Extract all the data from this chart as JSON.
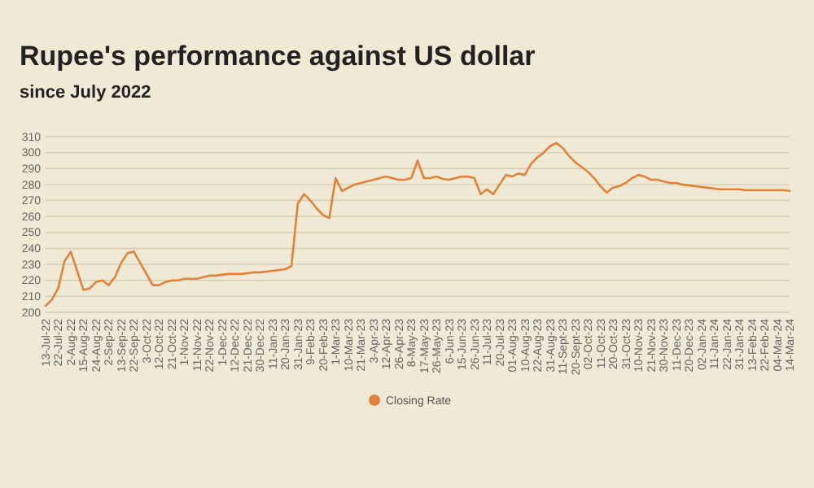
{
  "chart_data": {
    "type": "line",
    "title": "Rupee's performance against US dollar",
    "subtitle": "since July 2022",
    "categories": [
      "13-Jul-22",
      null,
      "22-Jul-22",
      null,
      "2-Aug-22",
      null,
      "15-Aug-22",
      null,
      "24-Aug-22",
      null,
      "2-Sep-22",
      null,
      "13-Sep-22",
      null,
      "22-Sep-22",
      null,
      "3-Oct-22",
      null,
      "12-Oct-22",
      null,
      "21-Oct-22",
      null,
      "1-Nov-22",
      null,
      "11-Nov-22",
      null,
      "22-Nov-22",
      null,
      "1-Dec-22",
      null,
      "12-Dec-22",
      null,
      "21-Dec-22",
      null,
      "30-Dec-22",
      null,
      "11-Jan-23",
      null,
      "20-Jan-23",
      null,
      "31-Jan-23",
      null,
      "9-Feb-23",
      null,
      "20-Feb-23",
      null,
      "1-Mar-23",
      null,
      "10-Mar-23",
      null,
      "21-Mar-23",
      null,
      "3-Apr-23",
      null,
      "12-Apr-23",
      null,
      "26-Apr-23",
      null,
      "8-May-23",
      null,
      "17-May-23",
      null,
      "26-May-23",
      null,
      "6-Jun-23",
      null,
      "15-Jun-23",
      null,
      "26-Jun-23",
      null,
      "11-Jul-23",
      null,
      "20-Jul-23",
      null,
      "01-Aug-23",
      null,
      "10-Aug-23",
      null,
      "22-Aug-23",
      null,
      "31-Aug-23",
      null,
      "11-Sept-23",
      null,
      "20-Sept-23",
      null,
      "02-Oct-23",
      null,
      "11-Oct-23",
      null,
      "20-Oct-23",
      null,
      "31-Oct-23",
      null,
      "10-Nov-23",
      null,
      "21-Nov-23",
      null,
      "30-Nov-23",
      null,
      "11-Dec-23",
      null,
      "20-Dec-23",
      null,
      "02-Jan-24",
      null,
      "11-Jan-24",
      null,
      "22-Jan-24",
      null,
      "31-Jan-24",
      null,
      "13-Feb-24",
      null,
      "22-Feb-24",
      null,
      "04-Mar-24",
      null,
      "14-Mar-24"
    ],
    "series": [
      {
        "name": "Closing Rate",
        "color": "#e0823a",
        "values": [
          204,
          208,
          215,
          232,
          238,
          226,
          214,
          215,
          219,
          220,
          217,
          222,
          231,
          237,
          238,
          231,
          224,
          217,
          217,
          219,
          220,
          220,
          221,
          221,
          221,
          222,
          223,
          223,
          223.5,
          224,
          224,
          224,
          224.5,
          225,
          225,
          225.5,
          226,
          226.5,
          227,
          229,
          268,
          274,
          270,
          265,
          261,
          259,
          284,
          276,
          278,
          280,
          281,
          282,
          283,
          284,
          285,
          284,
          283,
          283,
          284,
          295,
          284,
          284,
          285,
          283.5,
          283,
          284,
          285,
          285,
          284,
          274,
          277,
          274,
          280,
          286,
          285,
          287,
          286,
          293,
          297,
          300,
          304,
          306,
          303,
          298,
          294,
          291,
          288,
          284,
          279,
          275,
          278,
          279,
          281,
          284,
          286,
          285,
          283,
          283,
          282,
          281,
          281,
          280,
          279.5,
          279,
          278.5,
          278,
          277.5,
          277,
          277,
          277,
          277,
          276.5,
          276.5,
          276.5,
          276.5,
          276.5,
          276.5,
          276.5,
          276
        ]
      }
    ],
    "ylim": [
      200,
      310
    ],
    "yticks": [
      200,
      210,
      220,
      230,
      240,
      250,
      260,
      270,
      280,
      290,
      300,
      310
    ],
    "grid": "y",
    "legend": "bottom"
  }
}
